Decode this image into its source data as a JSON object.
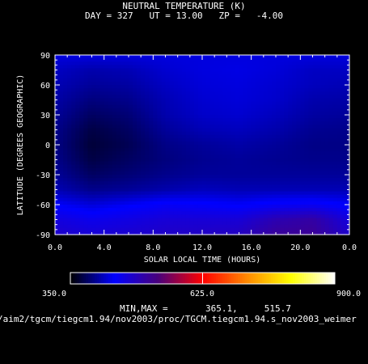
{
  "chart_data": {
    "type": "heatmap",
    "title": "NEUTRAL TEMPERATURE (K)",
    "subtitle": "DAY = 327   UT = 13.00   ZP =   -4.00",
    "xlabel": "SOLAR LOCAL TIME (HOURS)",
    "ylabel": "LATITUDE (DEGREES GEOGRAPHIC)",
    "xlim": [
      0,
      24
    ],
    "ylim": [
      -90,
      90
    ],
    "x_ticks": [
      "0.0",
      "4.0",
      "8.0",
      "12.0",
      "16.0",
      "20.0",
      "0.0"
    ],
    "y_ticks": [
      "90",
      "60",
      "30",
      "0",
      "-30",
      "-60",
      "-90"
    ],
    "colorbar": {
      "min": 350.0,
      "max": 900.0,
      "labels": [
        "350.0",
        "625.0",
        "900.0"
      ],
      "stops": [
        "#000000",
        "#0000ff",
        "#4a007a",
        "#ff0000",
        "#ff8800",
        "#ffff00",
        "#ffffff"
      ]
    },
    "min_max_text": "MIN,MAX =       365.1,     515.7",
    "min": 365.1,
    "max": 515.7,
    "x": [
      0,
      3,
      6,
      9,
      12,
      15,
      18,
      21,
      24
    ],
    "y": [
      90,
      75,
      60,
      45,
      30,
      15,
      0,
      -15,
      -30,
      -45,
      -60,
      -75,
      -90
    ],
    "values": [
      [
        430,
        430,
        430,
        430,
        430,
        430,
        430,
        430,
        430
      ],
      [
        420,
        412,
        415,
        425,
        430,
        432,
        428,
        420,
        420
      ],
      [
        415,
        405,
        408,
        420,
        428,
        430,
        425,
        418,
        415
      ],
      [
        410,
        395,
        400,
        415,
        425,
        428,
        423,
        412,
        410
      ],
      [
        405,
        385,
        392,
        412,
        422,
        425,
        418,
        408,
        405
      ],
      [
        400,
        375,
        385,
        405,
        415,
        418,
        412,
        402,
        400
      ],
      [
        398,
        370,
        380,
        398,
        405,
        410,
        405,
        398,
        398
      ],
      [
        400,
        375,
        385,
        395,
        402,
        405,
        402,
        400,
        400
      ],
      [
        405,
        385,
        392,
        400,
        405,
        405,
        405,
        405,
        405
      ],
      [
        415,
        400,
        405,
        412,
        418,
        415,
        415,
        415,
        415
      ],
      [
        440,
        428,
        438,
        448,
        445,
        440,
        448,
        450,
        440
      ],
      [
        465,
        455,
        462,
        470,
        470,
        470,
        495,
        505,
        465
      ],
      [
        478,
        470,
        475,
        480,
        482,
        485,
        512,
        515,
        478
      ]
    ]
  },
  "path_text": "/aim2/tgcm/tiegcm1.94/nov2003/proc/TGCM.tiegcm1.94.s_nov2003_weimer"
}
